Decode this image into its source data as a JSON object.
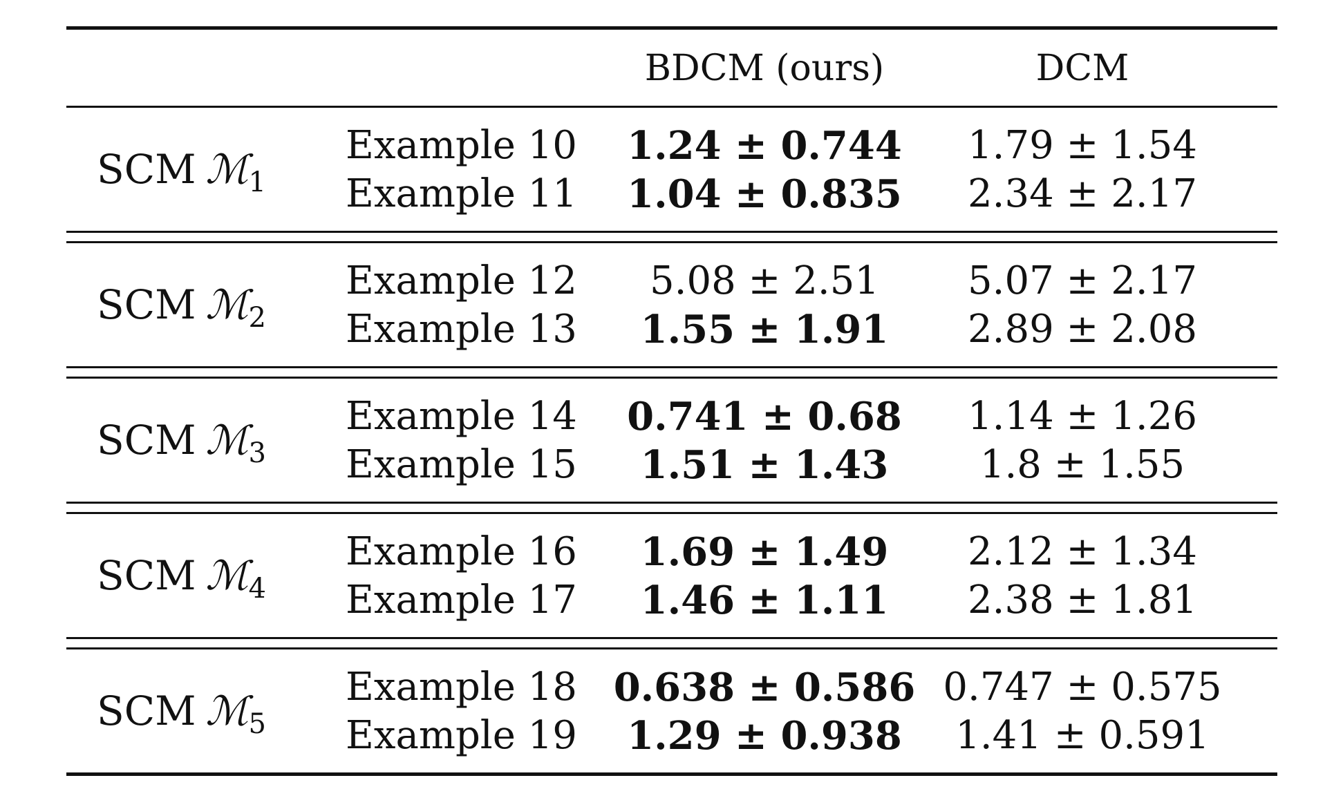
{
  "header": {
    "col1": "",
    "col2": "",
    "bdcm": "BDCM (ours)",
    "dcm": "DCM"
  },
  "groups": [
    {
      "scm": "SCM",
      "model_symbol": "ℳ",
      "model_index": "1",
      "rows": [
        {
          "example": "Example 10",
          "bdcm": "1.24 ± 0.744",
          "bdcm_bold": true,
          "dcm": "1.79 ± 1.54"
        },
        {
          "example": "Example 11",
          "bdcm": "1.04 ± 0.835",
          "bdcm_bold": true,
          "dcm": "2.34 ± 2.17"
        }
      ]
    },
    {
      "scm": "SCM",
      "model_symbol": "ℳ",
      "model_index": "2",
      "rows": [
        {
          "example": "Example 12",
          "bdcm": "5.08 ± 2.51",
          "bdcm_bold": false,
          "dcm": "5.07 ± 2.17"
        },
        {
          "example": "Example 13",
          "bdcm": "1.55 ± 1.91",
          "bdcm_bold": true,
          "dcm": "2.89 ± 2.08"
        }
      ]
    },
    {
      "scm": "SCM",
      "model_symbol": "ℳ",
      "model_index": "3",
      "rows": [
        {
          "example": "Example 14",
          "bdcm": "0.741 ± 0.68",
          "bdcm_bold": true,
          "dcm": "1.14 ± 1.26"
        },
        {
          "example": "Example 15",
          "bdcm": "1.51 ± 1.43",
          "bdcm_bold": true,
          "dcm": "1.8 ± 1.55"
        }
      ]
    },
    {
      "scm": "SCM",
      "model_symbol": "ℳ",
      "model_index": "4",
      "rows": [
        {
          "example": "Example 16",
          "bdcm": "1.69 ± 1.49",
          "bdcm_bold": true,
          "dcm": "2.12 ± 1.34"
        },
        {
          "example": "Example 17",
          "bdcm": "1.46 ± 1.11",
          "bdcm_bold": true,
          "dcm": "2.38 ± 1.81"
        }
      ]
    },
    {
      "scm": "SCM",
      "model_symbol": "ℳ",
      "model_index": "5",
      "rows": [
        {
          "example": "Example 18",
          "bdcm": "0.638 ± 0.586",
          "bdcm_bold": true,
          "dcm": "0.747 ± 0.575"
        },
        {
          "example": "Example 19",
          "bdcm": "1.29 ± 0.938",
          "bdcm_bold": true,
          "dcm": "1.41 ± 0.591"
        }
      ]
    }
  ]
}
